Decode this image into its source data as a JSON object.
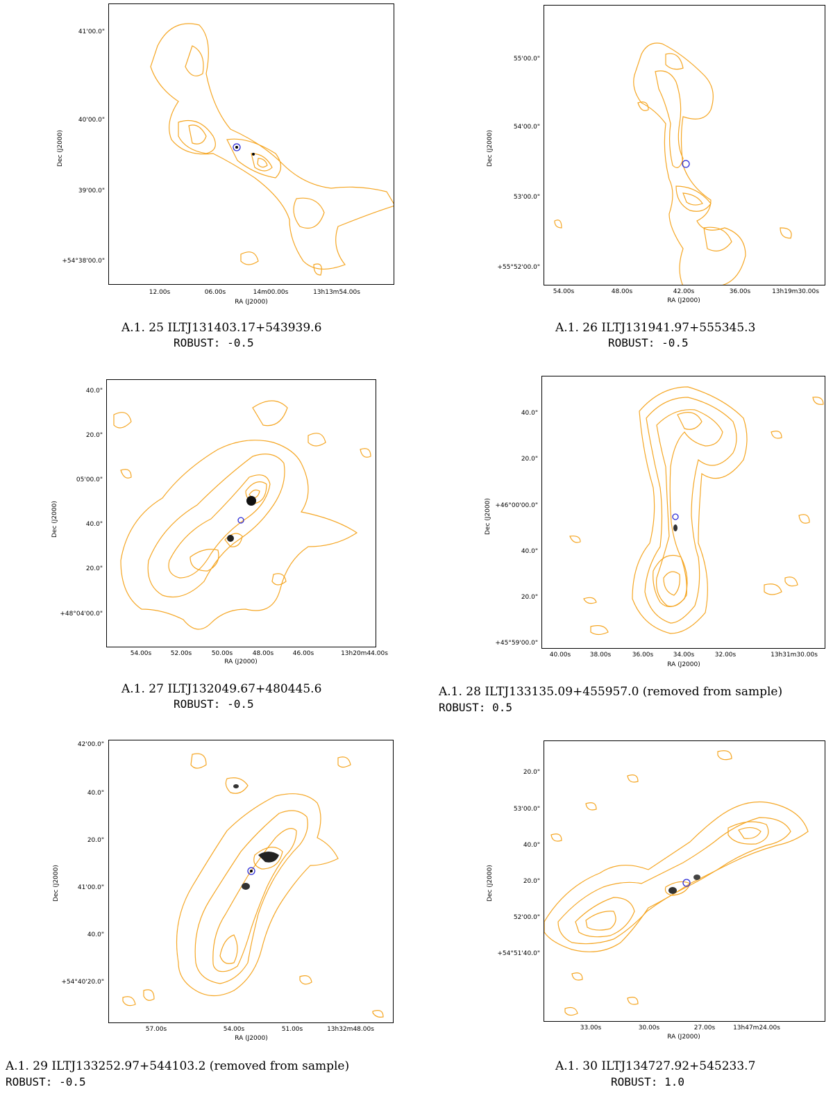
{
  "colors": {
    "contour": "#f5a623",
    "circle": "#2b2bd6",
    "grey": "#9a9a9a"
  },
  "panels": [
    {
      "xlabel": "RA (J2000)",
      "ylabel": "Dec (J2000)",
      "yticks": [
        "41'00.0\"",
        "40'00.0\"",
        "39'00.0\"",
        "+54°38'00.0\""
      ],
      "xticks": [
        "12.00s",
        "06.00s",
        "14m00.00s",
        "13h13m54.00s"
      ],
      "caption": "A.1. 25 ILTJ131403.17+543939.6",
      "robust": "ROBUST: -0.5"
    },
    {
      "xlabel": "RA (J2000)",
      "ylabel": "Dec (J2000)",
      "yticks": [
        "55'00.0\"",
        "54'00.0\"",
        "53'00.0\"",
        "+55°52'00.0\""
      ],
      "xticks": [
        "54.00s",
        "48.00s",
        "42.00s",
        "36.00s",
        "13h19m30.00s"
      ],
      "caption": "A.1. 26 ILTJ131941.97+555345.3",
      "robust": "ROBUST: -0.5"
    },
    {
      "xlabel": "RA (J2000)",
      "ylabel": "Dec (J2000)",
      "yticks": [
        "40.0\"",
        "20.0\"",
        "05'00.0\"",
        "40.0\"",
        "20.0\"",
        "+48°04'00.0\""
      ],
      "xticks": [
        "54.00s",
        "52.00s",
        "50.00s",
        "48.00s",
        "46.00s",
        "13h20m44.00s"
      ],
      "caption": "A.1. 27 ILTJ132049.67+480445.6",
      "robust": "ROBUST: -0.5"
    },
    {
      "xlabel": "RA (J2000)",
      "ylabel": "Dec (J2000)",
      "yticks": [
        "40.0\"",
        "20.0\"",
        "+46°00'00.0\"",
        "40.0\"",
        "20.0\"",
        "+45°59'00.0\""
      ],
      "xticks": [
        "40.00s",
        "38.00s",
        "36.00s",
        "34.00s",
        "32.00s",
        "13h31m30.00s"
      ],
      "caption": "A.1. 28 ILTJ133135.09+455957.0 (removed from sample)",
      "robust": "ROBUST: 0.5"
    },
    {
      "xlabel": "RA (J2000)",
      "ylabel": "Dec (J2000)",
      "yticks": [
        "42'00.0\"",
        "40.0\"",
        "20.0\"",
        "41'00.0\"",
        "40.0\"",
        "+54°40'20.0\""
      ],
      "xticks": [
        "57.00s",
        "54.00s",
        "51.00s",
        "13h32m48.00s"
      ],
      "caption": "A.1. 29 ILTJ133252.97+544103.2 (removed from sample)",
      "robust": "ROBUST: -0.5"
    },
    {
      "xlabel": "RA (J2000)",
      "ylabel": "Dec (J2000)",
      "yticks": [
        "20.0\"",
        "53'00.0\"",
        "40.0\"",
        "20.0\"",
        "52'00.0\"",
        "+54°51'40.0\""
      ],
      "xticks": [
        "33.00s",
        "30.00s",
        "27.00s",
        "13h47m24.00s"
      ],
      "caption": "A.1. 30 ILTJ134727.92+545233.7",
      "robust": "ROBUST: 1.0"
    }
  ]
}
